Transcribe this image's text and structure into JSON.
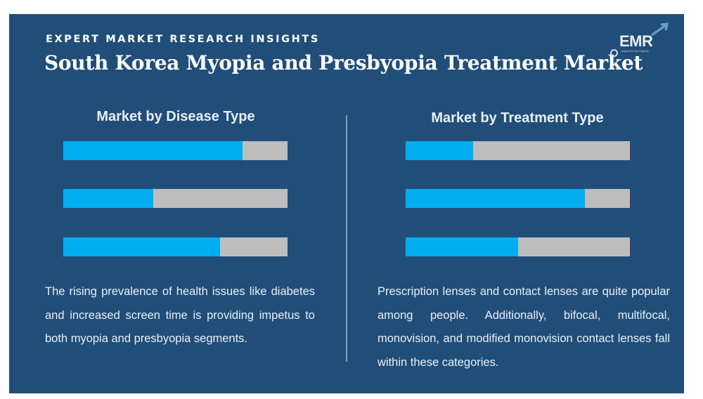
{
  "header": {
    "eyebrow": "EXPERT MARKET RESEARCH INSIGHTS",
    "title": "South Korea Myopia and Presbyopia Treatment Market"
  },
  "logo": {
    "text": "EMR",
    "tagline": "Leave it to the Experts"
  },
  "colors": {
    "background": "#214e79",
    "bar_fill": "#00aeef",
    "bar_track": "#bdbdbd"
  },
  "chart_data": [
    {
      "type": "bar",
      "orientation": "horizontal",
      "title": "Market by Disease Type",
      "categories": [
        "",
        "",
        ""
      ],
      "values": [
        0.8,
        0.4,
        0.7
      ],
      "xlim": [
        0,
        1
      ],
      "xlabel": "",
      "ylabel": "",
      "grid": false,
      "legend": "none"
    },
    {
      "type": "bar",
      "orientation": "horizontal",
      "title": "Market by Treatment Type",
      "categories": [
        "",
        "",
        ""
      ],
      "values": [
        0.3,
        0.8,
        0.5
      ],
      "xlim": [
        0,
        1
      ],
      "xlabel": "",
      "ylabel": "",
      "grid": false,
      "legend": "none"
    }
  ],
  "left": {
    "description": "The rising prevalence of health issues like diabetes and increased screen time is providing impetus to both myopia and presbyopia segments."
  },
  "right": {
    "description": "Prescription lenses and contact lenses are quite popular among people. Additionally, bifocal, multifocal, monovision, and modified monovision contact lenses fall within these categories."
  }
}
